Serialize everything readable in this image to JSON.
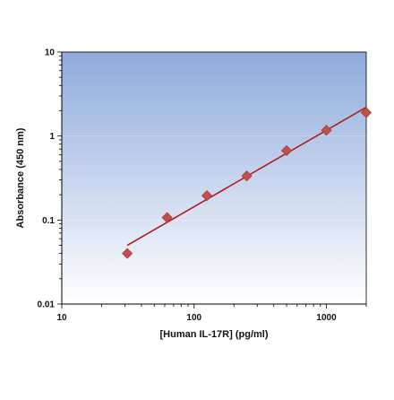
{
  "chart_data": {
    "type": "scatter",
    "xscale": "log",
    "yscale": "log",
    "xlabel": "[Human IL-17R] (pg/ml)",
    "ylabel": "Absorbance (450 nm)",
    "xlim": [
      10,
      2000
    ],
    "ylim": [
      0.01,
      10
    ],
    "xticks": [
      {
        "value": 10,
        "label": "10"
      },
      {
        "value": 100,
        "label": "100"
      },
      {
        "value": 1000,
        "label": "1000"
      }
    ],
    "yticks": [
      {
        "value": 0.01,
        "label": "0.01"
      },
      {
        "value": 0.1,
        "label": "0.1"
      },
      {
        "value": 1,
        "label": "1"
      },
      {
        "value": 10,
        "label": "10"
      }
    ],
    "series": [
      {
        "points": [
          {
            "x": 31.25,
            "y": 0.04
          },
          {
            "x": 62.5,
            "y": 0.107
          },
          {
            "x": 125,
            "y": 0.195
          },
          {
            "x": 250,
            "y": 0.335
          },
          {
            "x": 500,
            "y": 0.67
          },
          {
            "x": 1000,
            "y": 1.17
          },
          {
            "x": 2000,
            "y": 1.9
          }
        ]
      }
    ],
    "fit_line": {
      "x_start": 31.25,
      "y_start": 0.05,
      "x_end": 2000,
      "y_end": 2.2
    },
    "colors": {
      "marker": "#c0504d",
      "marker_stroke": "#a23c38",
      "fit_line": "#b01c1c",
      "plot_bg_top": "#8eaadb",
      "plot_bg_bottom": "#ffffff",
      "axis": "#000000",
      "gridline": "#ffffff"
    },
    "grid": false,
    "legend": "none"
  }
}
